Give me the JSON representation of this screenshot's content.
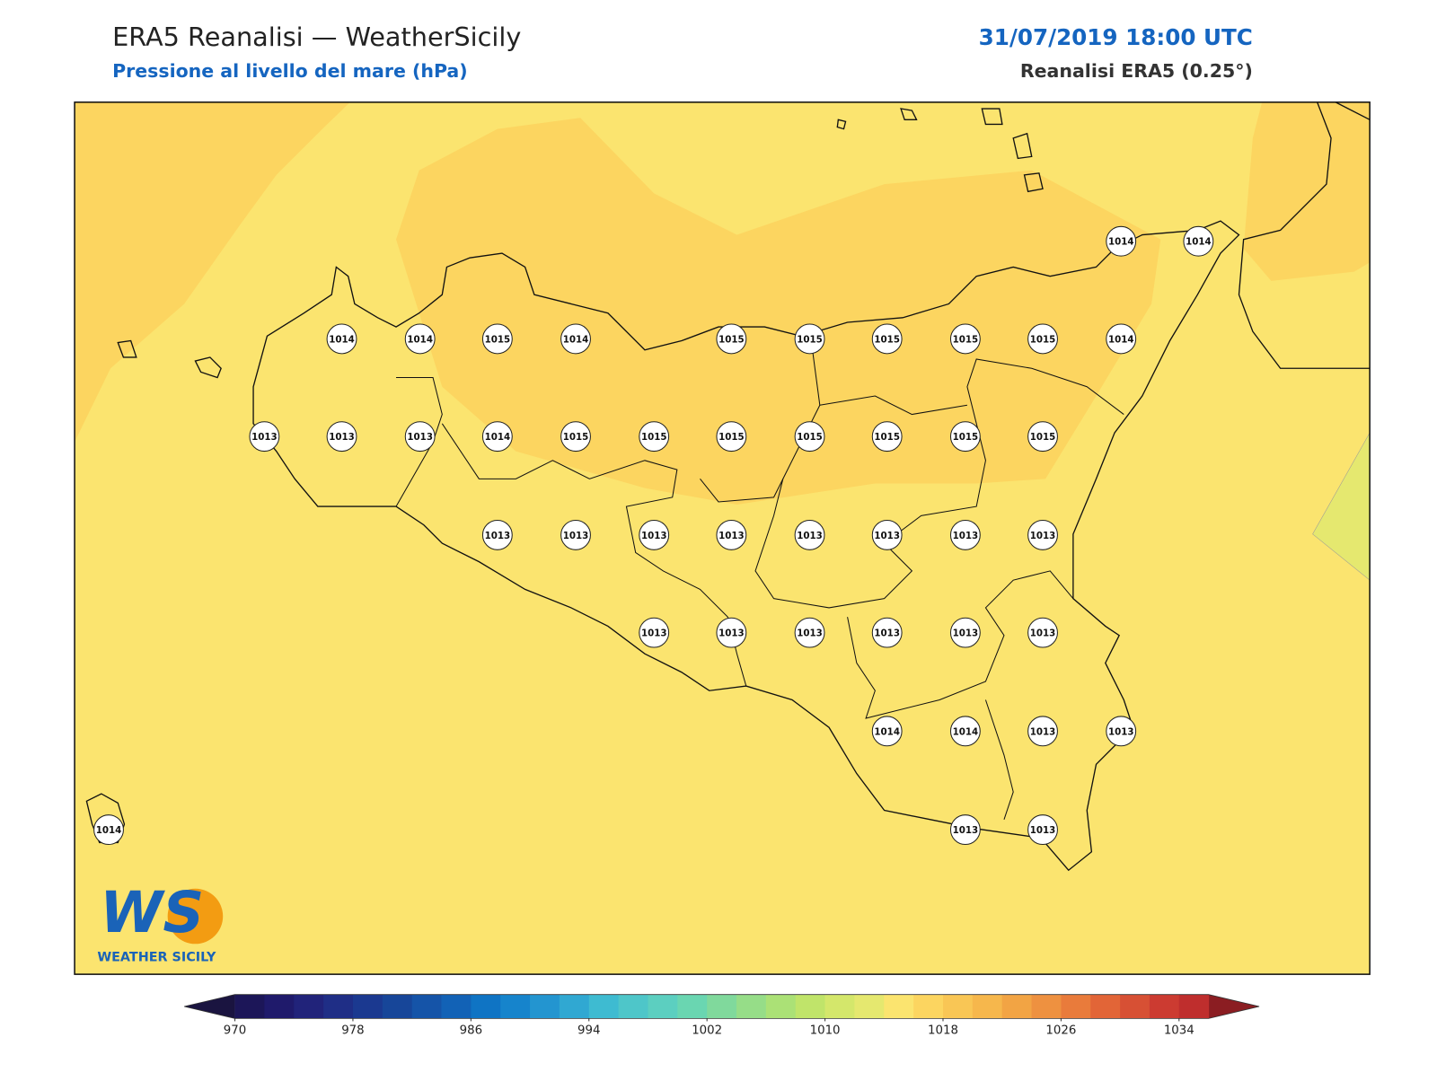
{
  "header": {
    "title": "ERA5 Reanalisi — WeatherSicily",
    "subtitle": "Pressione al livello del mare (hPa)",
    "datetime": "31/07/2019 18:00 UTC",
    "source": "Reanalisi ERA5 (0.25°)"
  },
  "logo": {
    "initials": "WS",
    "name": "WEATHER SICILY"
  },
  "stations": [
    1014,
    1014,
    1014,
    1014,
    1015,
    1014,
    1015,
    1015,
    1015,
    1015,
    1015,
    1014,
    1013,
    1013,
    1013,
    1014,
    1015,
    1015,
    1015,
    1015,
    1015,
    1015,
    1015,
    1013,
    1013,
    1013,
    1013,
    1013,
    1013,
    1013,
    1013,
    1013,
    1013,
    1013,
    1013,
    1013,
    1013,
    1014,
    1014,
    1013,
    1013,
    1014,
    1013,
    1013
  ],
  "colorbar": {
    "ticks": [
      970,
      978,
      986,
      994,
      1002,
      1010,
      1018,
      1026,
      1034
    ],
    "colors": [
      "#1c1658",
      "#1f1a6b",
      "#21237a",
      "#1f2e86",
      "#1b3990",
      "#174699",
      "#1554a8",
      "#1262b6",
      "#0f74c4",
      "#1684cc",
      "#2395d0",
      "#30a8d2",
      "#3ebbd1",
      "#4ec6c9",
      "#5ccfc0",
      "#6ad6b1",
      "#80d99c",
      "#96dd88",
      "#abe176",
      "#c0e46a",
      "#d4e76b",
      "#e5e86f",
      "#fbe46f",
      "#fcd560",
      "#f9c655",
      "#f6b74c",
      "#f2a444",
      "#ee9140",
      "#e97b3b",
      "#e26537",
      "#d75034",
      "#cc3b31",
      "#bf2e2d"
    ],
    "under_color": "#1a1440",
    "over_color": "#8b1d22"
  }
}
